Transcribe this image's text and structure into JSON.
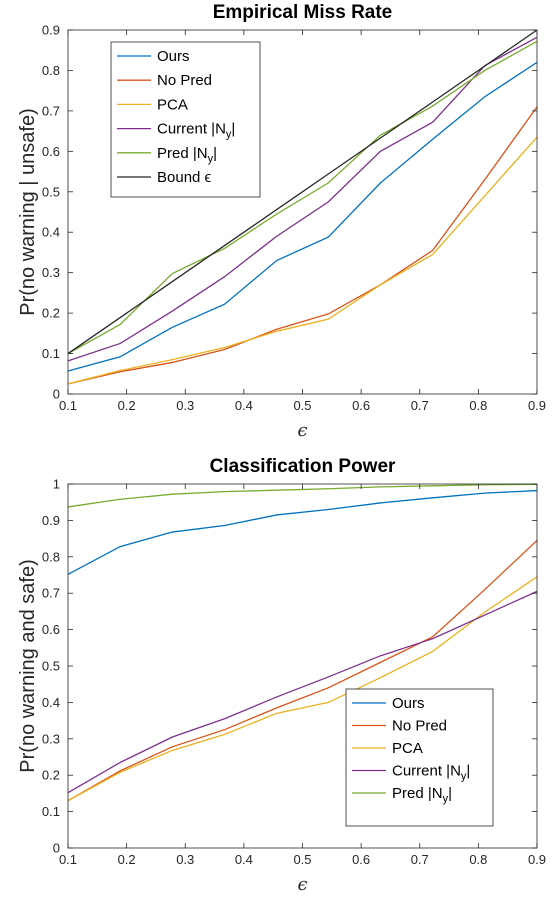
{
  "chart_data": [
    {
      "type": "line",
      "title": "Empirical Miss Rate",
      "xlabel": "ϵ",
      "ylabel": "Pr(no warning | unsafe)",
      "xlim": [
        0.1,
        0.9
      ],
      "ylim": [
        0,
        0.9
      ],
      "xticks": [
        0.1,
        0.2,
        0.3,
        0.4,
        0.5,
        0.6,
        0.7,
        0.8,
        0.9
      ],
      "yticks": [
        0,
        0.1,
        0.2,
        0.3,
        0.4,
        0.5,
        0.6,
        0.7,
        0.8,
        0.9
      ],
      "grid": false,
      "legend_position": "top-left",
      "x": [
        0.1,
        0.189,
        0.278,
        0.367,
        0.456,
        0.544,
        0.633,
        0.722,
        0.811,
        0.9
      ],
      "series": [
        {
          "name": "Ours",
          "color": "#0072BD",
          "values": [
            0.057,
            0.092,
            0.165,
            0.222,
            0.33,
            0.388,
            0.522,
            0.63,
            0.735,
            0.82
          ]
        },
        {
          "name": "No Pred",
          "color": "#D95319",
          "values": [
            0.025,
            0.055,
            0.078,
            0.11,
            0.16,
            0.198,
            0.27,
            0.355,
            0.53,
            0.71
          ]
        },
        {
          "name": "PCA",
          "color": "#EDB120",
          "values": [
            0.025,
            0.058,
            0.085,
            0.115,
            0.155,
            0.185,
            0.27,
            0.345,
            0.49,
            0.635
          ]
        },
        {
          "name": "Current |N_y|",
          "color": "#7E2F8E",
          "values": [
            0.082,
            0.125,
            0.205,
            0.29,
            0.39,
            0.475,
            0.6,
            0.672,
            0.812,
            0.882
          ]
        },
        {
          "name": "Pred |N_y|",
          "color": "#77AC30",
          "values": [
            0.1,
            0.172,
            0.298,
            0.36,
            0.445,
            0.522,
            0.64,
            0.712,
            0.8,
            0.872
          ]
        },
        {
          "name": "Bound ϵ",
          "color": "#262626",
          "values": [
            0.1,
            0.189,
            0.278,
            0.367,
            0.456,
            0.544,
            0.633,
            0.722,
            0.811,
            0.9
          ]
        }
      ]
    },
    {
      "type": "line",
      "title": "Classification Power",
      "xlabel": "ϵ",
      "ylabel": "Pr(no warning and safe)",
      "xlim": [
        0.1,
        0.9
      ],
      "ylim": [
        0,
        1
      ],
      "xticks": [
        0.1,
        0.2,
        0.3,
        0.4,
        0.5,
        0.6,
        0.7,
        0.8,
        0.9
      ],
      "yticks": [
        0,
        0.1,
        0.2,
        0.3,
        0.4,
        0.5,
        0.6,
        0.7,
        0.8,
        0.9,
        1
      ],
      "grid": false,
      "legend_position": "bottom-right",
      "x": [
        0.1,
        0.189,
        0.278,
        0.367,
        0.456,
        0.544,
        0.633,
        0.722,
        0.811,
        0.9
      ],
      "series": [
        {
          "name": "Ours",
          "color": "#0072BD",
          "values": [
            0.752,
            0.828,
            0.868,
            0.886,
            0.915,
            0.93,
            0.948,
            0.962,
            0.975,
            0.982
          ]
        },
        {
          "name": "No Pred",
          "color": "#D95319",
          "values": [
            0.13,
            0.212,
            0.278,
            0.325,
            0.385,
            0.44,
            0.51,
            0.58,
            0.71,
            0.845
          ]
        },
        {
          "name": "PCA",
          "color": "#EDB120",
          "values": [
            0.13,
            0.208,
            0.268,
            0.312,
            0.37,
            0.4,
            0.468,
            0.54,
            0.648,
            0.745
          ]
        },
        {
          "name": "Current |N_y|",
          "color": "#7E2F8E",
          "values": [
            0.152,
            0.235,
            0.305,
            0.355,
            0.415,
            0.47,
            0.528,
            0.575,
            0.64,
            0.705
          ]
        },
        {
          "name": "Pred |N_y|",
          "color": "#77AC30",
          "values": [
            0.937,
            0.958,
            0.972,
            0.979,
            0.983,
            0.987,
            0.992,
            0.995,
            0.998,
            0.999
          ]
        }
      ]
    }
  ]
}
